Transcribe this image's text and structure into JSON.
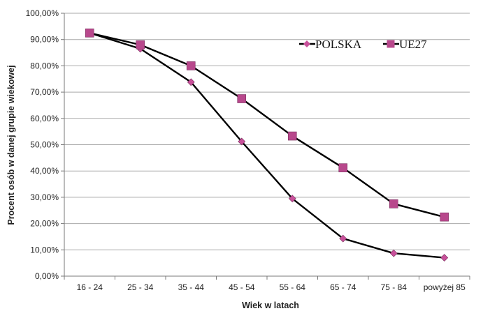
{
  "chart_data": {
    "type": "line",
    "categories": [
      "16 - 24",
      "25 - 34",
      "35 - 44",
      "45 - 54",
      "55 - 64",
      "65 - 74",
      "75 - 84",
      "powyżej 85"
    ],
    "series": [
      {
        "name": "POLSKA",
        "marker": "diamond",
        "color": "#c8509a",
        "values": [
          92.5,
          86.5,
          73.8,
          51.2,
          29.5,
          14.3,
          8.7,
          7.0
        ]
      },
      {
        "name": "UE27",
        "marker": "square",
        "color": "#b8488c",
        "values": [
          92.5,
          88.0,
          80.0,
          67.5,
          53.3,
          41.2,
          27.5,
          22.5
        ]
      }
    ],
    "yticks": [
      "0,00%",
      "10,00%",
      "20,00%",
      "30,00%",
      "40,00%",
      "50,00%",
      "60,00%",
      "70,00%",
      "80,00%",
      "90,00%",
      "100,00%"
    ],
    "ylim": [
      0,
      100
    ],
    "xlabel": "Wiek w latach",
    "ylabel": "Procent osób w danej grupie wiekowej",
    "grid": true,
    "legend_position": "top-right"
  }
}
